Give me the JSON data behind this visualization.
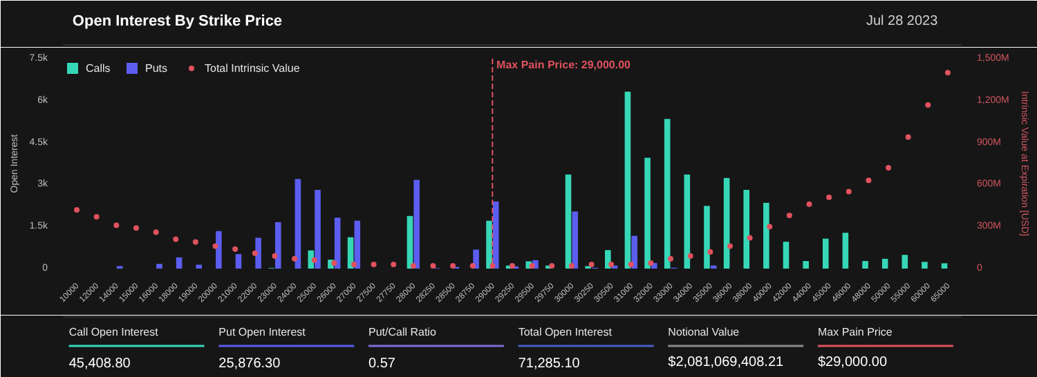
{
  "chart_data": {
    "type": "bar",
    "title": "Open Interest By Strike Price",
    "subtitle": "Jul 28 2023",
    "ylabel": "Open Interest",
    "y2label": "Intrinsic Value at Expiration [USD]",
    "categories": [
      "10000",
      "12000",
      "14000",
      "15000",
      "16000",
      "18000",
      "19000",
      "20000",
      "21000",
      "22000",
      "23000",
      "24000",
      "25000",
      "26000",
      "27000",
      "27500",
      "27750",
      "28000",
      "28250",
      "28500",
      "28750",
      "29000",
      "29250",
      "29500",
      "29750",
      "30000",
      "30250",
      "30500",
      "31000",
      "32000",
      "33000",
      "34000",
      "35000",
      "36000",
      "38000",
      "40000",
      "42000",
      "44000",
      "45000",
      "46000",
      "48000",
      "50000",
      "55000",
      "60000",
      "65000"
    ],
    "series": [
      {
        "name": "Calls",
        "color": "#36d7b7",
        "values": [
          0,
          0,
          0,
          0,
          0,
          0,
          0,
          0,
          0,
          0,
          20,
          0,
          650,
          320,
          1120,
          0,
          0,
          1880,
          0,
          0,
          0,
          1710,
          110,
          260,
          110,
          3360,
          90,
          660,
          6320,
          3960,
          5350,
          3360,
          2240,
          3240,
          2810,
          2350,
          960,
          270,
          1070,
          1280,
          270,
          350,
          490,
          240,
          190
        ]
      },
      {
        "name": "Puts",
        "color": "#5b5ef0",
        "values": [
          0,
          0,
          90,
          0,
          170,
          400,
          140,
          1340,
          520,
          1100,
          1660,
          3200,
          2810,
          1820,
          1710,
          0,
          0,
          3170,
          20,
          60,
          680,
          2400,
          80,
          300,
          0,
          2040,
          30,
          110,
          1170,
          200,
          30,
          0,
          110,
          0,
          0,
          0,
          0,
          0,
          0,
          0,
          0,
          0,
          0,
          0,
          0
        ]
      },
      {
        "name": "Total Intrinsic Value",
        "type": "scatter",
        "axis": "y2",
        "color": "#e0525e",
        "values": [
          420000000,
          370000000,
          310000000,
          290000000,
          260000000,
          210000000,
          190000000,
          160000000,
          140000000,
          110000000,
          90000000,
          70000000,
          60000000,
          40000000,
          30000000,
          30000000,
          30000000,
          20000000,
          20000000,
          20000000,
          20000000,
          20000000,
          20000000,
          20000000,
          20000000,
          20000000,
          30000000,
          30000000,
          30000000,
          40000000,
          70000000,
          90000000,
          120000000,
          160000000,
          220000000,
          300000000,
          380000000,
          460000000,
          510000000,
          550000000,
          630000000,
          720000000,
          940000000,
          1170000000,
          1400000000
        ]
      }
    ],
    "ylim": [
      0,
      7500
    ],
    "yticks": [
      0,
      {
        "value": 1500,
        "label": "1.5k"
      },
      {
        "value": 3000,
        "label": "3k"
      },
      {
        "value": 4500,
        "label": "4.5k"
      },
      {
        "value": 6000,
        "label": "6k"
      },
      {
        "value": 7500,
        "label": "7.5k"
      }
    ],
    "y2lim": [
      0,
      1500000000
    ],
    "y2ticks": [
      {
        "value": 0,
        "label": "0"
      },
      {
        "value": 300000000,
        "label": "300M"
      },
      {
        "value": 600000000,
        "label": "600M"
      },
      {
        "value": 900000000,
        "label": "900M"
      },
      {
        "value": 1200000000,
        "label": "1,200M"
      },
      {
        "value": 1500000000,
        "label": "1,500M"
      }
    ],
    "ref_lines": [
      {
        "axis": "x",
        "value": "29000",
        "label": "Max Pain Price: 29,000.00",
        "color": "#e0525e",
        "line_style": "dashed"
      }
    ],
    "marker": "circle",
    "grid": false,
    "legend": "top left",
    "annotations": [
      "Call Open Interest",
      "45,408.80",
      "Put Open Interest",
      "25,876.30",
      "Put/Call Ratio",
      "0.57",
      "Total Open Interest",
      "71,285.10",
      "Notional Value",
      "$2,081,069,408.21",
      "Max Pain Price",
      "$29,000.00"
    ]
  }
}
